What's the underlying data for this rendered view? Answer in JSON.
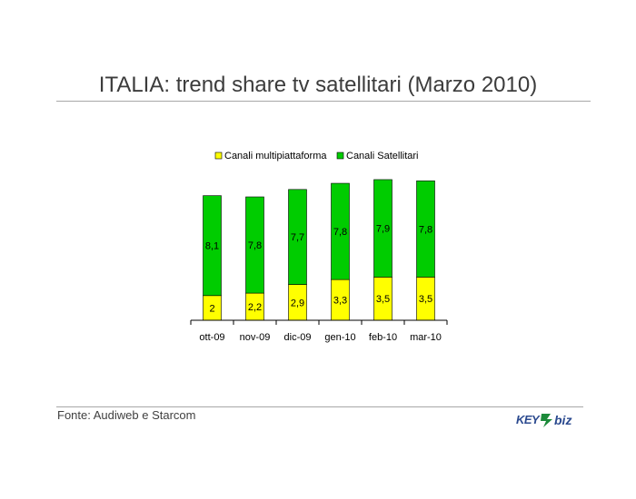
{
  "header": {
    "title": "ITALIA: trend share tv satellitari (Marzo 2010)"
  },
  "footer": {
    "source": "Fonte: Audiweb e Starcom",
    "logo_text": "KEY4biz"
  },
  "colors": {
    "multipiattaforma": "#FFFF00",
    "satellitari": "#00CC00",
    "logo_blue": "#2b4a8f",
    "logo_green": "#1c8a3a"
  },
  "icons": {
    "logo": "key4biz-logo"
  },
  "chart_data": {
    "type": "bar",
    "stacked": true,
    "categories": [
      "ott-09",
      "nov-09",
      "dic-09",
      "gen-10",
      "feb-10",
      "mar-10"
    ],
    "series": [
      {
        "name": "Canali multipiattaforma",
        "values": [
          2,
          2.2,
          2.9,
          3.3,
          3.5,
          3.5
        ],
        "labels": [
          "2",
          "2,2",
          "2,9",
          "3,3",
          "3,5",
          "3,5"
        ]
      },
      {
        "name": "Canali Satellitari",
        "values": [
          8.1,
          7.8,
          7.7,
          7.8,
          7.9,
          7.8
        ],
        "labels": [
          "8,1",
          "7,8",
          "7,7",
          "7,8",
          "7,9",
          "7,8"
        ]
      }
    ],
    "legend_position": "top",
    "grid": false
  }
}
